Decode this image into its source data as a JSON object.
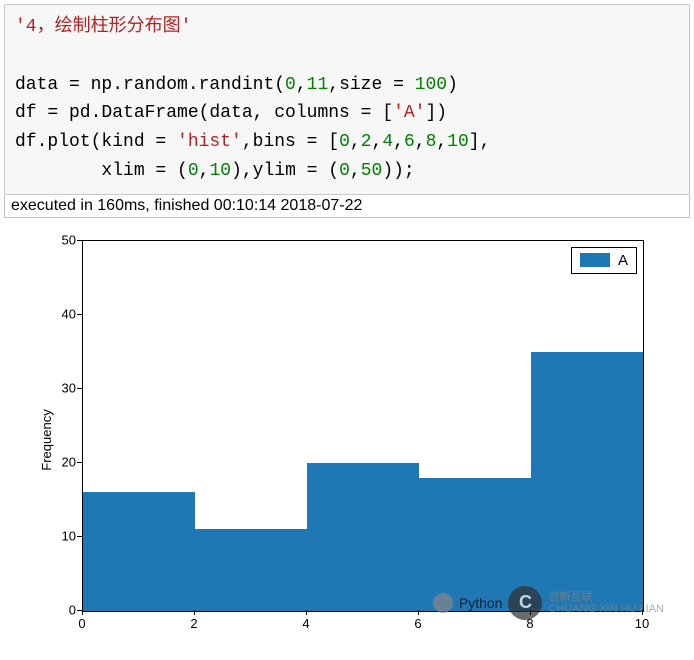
{
  "code": {
    "line1": {
      "str": "'4，绘制柱形分布图'"
    },
    "line2": {
      "p1": "data = np.random.randint(",
      "n1": "0",
      "c1": ",",
      "n2": "11",
      "c2": ",size = ",
      "n3": "100",
      "c3": ")"
    },
    "line3": {
      "p1": "df = pd.DataFrame(data, columns = [",
      "s1": "'A'",
      "p2": "])"
    },
    "line4": {
      "p1": "df.plot(kind = ",
      "s1": "'hist'",
      "p2": ",bins = [",
      "n1": "0",
      "c1": ",",
      "n2": "2",
      "c2": ",",
      "n3": "4",
      "c3": ",",
      "n4": "6",
      "c4": ",",
      "n5": "8",
      "c5": ",",
      "n6": "10",
      "p3": "],"
    },
    "line5": {
      "pad": "        xlim = (",
      "n1": "0",
      "c1": ",",
      "n2": "10",
      "p2": "),ylim = (",
      "n3": "0",
      "c3": ",",
      "n4": "50",
      "p3": "));"
    }
  },
  "exec_status": "executed in 160ms, finished 00:10:14 2018-07-22",
  "chart": {
    "type": "histogram",
    "ylabel": "Frequency",
    "legend_label": "A",
    "bar_color": "#1f77b4",
    "background_color": "#ffffff",
    "frame_color": "#000000",
    "xlim": [
      0,
      10
    ],
    "ylim": [
      0,
      50
    ],
    "xticks": [
      0,
      2,
      4,
      6,
      8,
      10
    ],
    "yticks": [
      0,
      10,
      20,
      30,
      40,
      50
    ],
    "bin_edges": [
      0,
      2,
      4,
      6,
      8,
      10
    ],
    "bar_values": [
      16,
      11,
      20,
      18,
      35
    ],
    "label_fontsize": 13,
    "legend_fontsize": 15
  },
  "watermark": {
    "txt1": "Python",
    "badge": "C",
    "txt2a": "创新互联",
    "txt2b": "CHUANG XIN HU LIAN"
  }
}
